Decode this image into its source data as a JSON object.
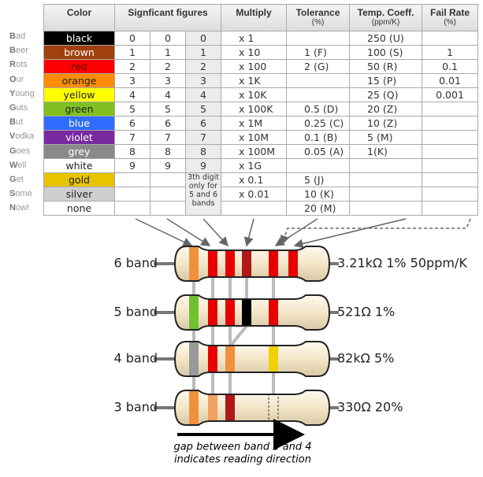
{
  "mnemonic": [
    "Bad",
    "Beer",
    "Rots",
    "Our",
    "Young",
    "Guts",
    "But",
    "Vodka",
    "Goes",
    "Well",
    "Get",
    "Some",
    "Now!"
  ],
  "table": {
    "headers": {
      "color": "Color",
      "significant": "Signficant figures",
      "multiply": "Multiply",
      "tolerance": "Tolerance",
      "tolerance_unit": "(%)",
      "temp": "Temp. Coeff.",
      "temp_unit": "(ppm/K)",
      "fail": "Fail Rate",
      "fail_unit": "(%)"
    },
    "note": "3th digit only for 5 and 6 bands",
    "rows": [
      {
        "color": "black",
        "swatch": "#000000",
        "text_color": "#ffffff",
        "cells": [
          "0",
          "0",
          "0",
          "x 1",
          null,
          "250 (U)",
          null
        ]
      },
      {
        "color": "brown",
        "swatch": "#a0400c",
        "text_color": "#ffffff",
        "cells": [
          "1",
          "1",
          "1",
          "x 10",
          "1 (F)",
          "100 (S)",
          "1"
        ]
      },
      {
        "color": "red",
        "swatch": "#ff0000",
        "text_color": "#600000",
        "cells": [
          "2",
          "2",
          "2",
          "x 100",
          "2 (G)",
          "50 (R)",
          "0.1"
        ]
      },
      {
        "color": "orange",
        "swatch": "#ff8c00",
        "text_color": "#222222",
        "cells": [
          "3",
          "3",
          "3",
          "x 1K",
          null,
          "15 (P)",
          "0.01"
        ]
      },
      {
        "color": "yellow",
        "swatch": "#ffff00",
        "text_color": "#222222",
        "cells": [
          "4",
          "4",
          "4",
          "x 10K",
          null,
          "25 (Q)",
          "0.001"
        ]
      },
      {
        "color": "green",
        "swatch": "#80c020",
        "text_color": "#222222",
        "cells": [
          "5",
          "5",
          "5",
          "x 100K",
          "0.5 (D)",
          "20 (Z)",
          null
        ]
      },
      {
        "color": "blue",
        "swatch": "#2f6cff",
        "text_color": "#ffffff",
        "cells": [
          "6",
          "6",
          "6",
          "x 1M",
          "0.25 (C)",
          "10 (Z)",
          null
        ]
      },
      {
        "color": "violet",
        "swatch": "#7a2aa0",
        "text_color": "#ffffff",
        "cells": [
          "7",
          "7",
          "7",
          "x 10M",
          "0.1 (B)",
          "5 (M)",
          null
        ]
      },
      {
        "color": "grey",
        "swatch": "#8a8a8a",
        "text_color": "#ffffff",
        "cells": [
          "8",
          "8",
          "8",
          "x 100M",
          "0.05 (A)",
          "1(K)",
          null
        ]
      },
      {
        "color": "white",
        "swatch": "#ffffff",
        "text_color": "#222222",
        "cells": [
          "9",
          "9",
          "9",
          "x 1G",
          null,
          null,
          null
        ]
      },
      {
        "color": "gold",
        "swatch": "#e8c400",
        "text_color": "#222222",
        "cells": [
          null,
          null,
          null,
          "x 0.1",
          "5 (J)",
          null,
          null
        ]
      },
      {
        "color": "silver",
        "swatch": "#cfcfcf",
        "text_color": "#222222",
        "cells": [
          null,
          null,
          null,
          "x 0.01",
          "10 (K)",
          null,
          null
        ]
      },
      {
        "color": "none",
        "swatch": "#ffffff",
        "text_color": "#222222",
        "cells": [
          null,
          null,
          null,
          null,
          "20 (M)",
          null,
          null
        ]
      }
    ]
  },
  "resistors": [
    {
      "label": "6 band",
      "value": "3.21kΩ 1% 50ppm/K",
      "bands": [
        "#f0903c",
        "#e80000",
        "#e80000",
        "#b01818",
        "#e80000",
        "#e80000"
      ]
    },
    {
      "label": "5 band",
      "value": "521Ω 1%",
      "bands": [
        "#70c030",
        "#e80000",
        "#e80000",
        "#000000",
        "#e80000"
      ]
    },
    {
      "label": "4 band",
      "value": "82kΩ 5%",
      "bands": [
        "#999999",
        "#e80000",
        "#f0903c",
        "#f0d000"
      ]
    },
    {
      "label": "3 band",
      "value": "330Ω 20%",
      "bands": [
        "#f0903c",
        "#f0a060",
        "#b01818",
        null
      ]
    }
  ],
  "caption": [
    "gap between band 3 and 4",
    "indicates reading direction"
  ]
}
